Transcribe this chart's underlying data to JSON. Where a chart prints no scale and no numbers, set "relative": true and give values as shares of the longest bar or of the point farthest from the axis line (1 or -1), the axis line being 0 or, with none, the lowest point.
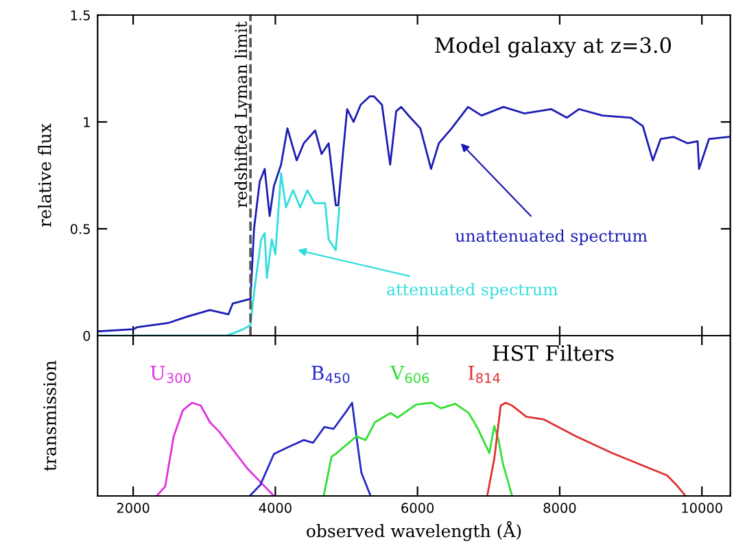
{
  "chart_data": [
    {
      "type": "line",
      "title": "Model galaxy at z=3.0",
      "ylabel": "relative flux",
      "xlim": [
        1500,
        10400
      ],
      "xticks": [
        2000,
        4000,
        6000,
        8000,
        10000
      ],
      "ylim": [
        0,
        1.5
      ],
      "yticks": [
        0,
        0.5,
        1,
        1.5
      ],
      "tick_labels": "y",
      "grid": false,
      "legend": false,
      "series": [
        {
          "color": "#1c1cb4",
          "x": [
            1510,
            2000,
            2060,
            2500,
            2770,
            3080,
            3340,
            3400,
            3630,
            3650,
            3700,
            3780,
            3850,
            3920,
            3980,
            4080,
            4170,
            4300,
            4400,
            4560,
            4650,
            4750,
            4850,
            4885,
            4950,
            5010,
            5100,
            5200,
            5330,
            5385,
            5500,
            5615,
            5700,
            5770,
            5900,
            6040,
            6190,
            6300,
            6480,
            6710,
            6900,
            7210,
            7500,
            7880,
            8100,
            8270,
            8600,
            9000,
            9170,
            9310,
            9420,
            9600,
            9800,
            9940,
            9960,
            10100,
            10380
          ],
          "values": [
            0.02,
            0.03,
            0.04,
            0.06,
            0.09,
            0.12,
            0.1,
            0.15,
            0.17,
            0.17,
            0.5,
            0.72,
            0.78,
            0.56,
            0.7,
            0.8,
            0.97,
            0.82,
            0.9,
            0.96,
            0.85,
            0.9,
            0.61,
            0.61,
            0.85,
            1.06,
            1.0,
            1.08,
            1.12,
            1.12,
            1.08,
            0.8,
            1.05,
            1.07,
            1.02,
            0.97,
            0.78,
            0.9,
            0.97,
            1.07,
            1.03,
            1.07,
            1.04,
            1.06,
            1.02,
            1.06,
            1.03,
            1.02,
            0.98,
            0.82,
            0.92,
            0.93,
            0.9,
            0.91,
            0.78,
            0.92,
            0.93
          ]
        },
        {
          "color": "#33dddd",
          "x": [
            1510,
            2500,
            3000,
            3300,
            3400,
            3550,
            3650,
            3700,
            3800,
            3850,
            3880,
            3950,
            4000,
            4080,
            4150,
            4250,
            4350,
            4450,
            4550,
            4700,
            4750,
            4850,
            4900
          ],
          "values": [
            0,
            0,
            0,
            0,
            0.01,
            0.03,
            0.05,
            0.2,
            0.45,
            0.48,
            0.27,
            0.45,
            0.38,
            0.76,
            0.6,
            0.68,
            0.6,
            0.68,
            0.62,
            0.62,
            0.45,
            0.4,
            0.6
          ]
        }
      ],
      "ref_lines": [
        {
          "axis": "x",
          "value": 3650,
          "label": "redshifted Lyman limit",
          "line_style": "dashed",
          "color": "#555555"
        }
      ],
      "annotations": [
        "unattenuated spectrum",
        "attenuated spectrum"
      ]
    },
    {
      "type": "line",
      "title": "HST Filters",
      "xlabel": "observed wavelength (Å)",
      "ylabel": "transmission",
      "relative": true,
      "xlim": [
        1500,
        10400
      ],
      "xticks": [
        2000,
        4000,
        6000,
        8000,
        10000
      ],
      "tick_labels": "x",
      "grid": false,
      "series": [
        {
          "name": "U$_{300}$",
          "color": "#e030e0",
          "x": [
            2330,
            2450,
            2570,
            2700,
            2830,
            2950,
            3080,
            3210,
            3400,
            3600,
            3790,
            3980
          ],
          "values": [
            0,
            0.1,
            0.64,
            0.92,
            1.0,
            0.97,
            0.79,
            0.69,
            0.5,
            0.3,
            0.15,
            0
          ]
        },
        {
          "name": "B$_{450}$",
          "color": "#2828c8",
          "x": [
            3640,
            3790,
            3980,
            4170,
            4400,
            4530,
            4690,
            4820,
            5010,
            5080,
            5140,
            5210,
            5340
          ],
          "values": [
            0,
            0.12,
            0.45,
            0.52,
            0.6,
            0.57,
            0.74,
            0.72,
            0.92,
            1.0,
            0.64,
            0.25,
            0
          ]
        },
        {
          "name": "V$_{606}$",
          "color": "#30e030",
          "x": [
            4680,
            4790,
            4880,
            5140,
            5270,
            5400,
            5620,
            5720,
            5980,
            6200,
            6330,
            6530,
            6720,
            6850,
            7010,
            7080,
            7140,
            7200,
            7330
          ],
          "values": [
            0,
            0.42,
            0.47,
            0.64,
            0.6,
            0.79,
            0.89,
            0.84,
            0.98,
            1.0,
            0.94,
            0.99,
            0.89,
            0.72,
            0.46,
            0.75,
            0.6,
            0.35,
            0
          ]
        },
        {
          "name": "I$_{814}$",
          "color": "#e03030",
          "x": [
            6980,
            7080,
            7170,
            7240,
            7330,
            7530,
            7780,
            8230,
            8740,
            9190,
            9510,
            9640,
            9770
          ],
          "values": [
            0,
            0.4,
            0.97,
            1.0,
            0.97,
            0.85,
            0.82,
            0.64,
            0.46,
            0.32,
            0.22,
            0.12,
            0
          ]
        }
      ]
    }
  ]
}
